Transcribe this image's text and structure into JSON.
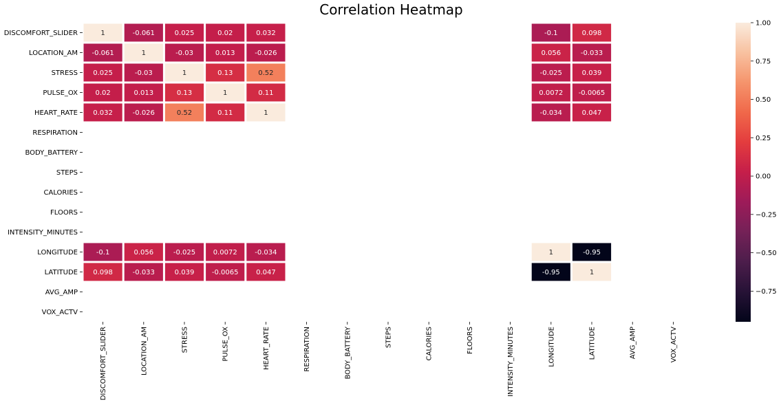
{
  "chart_data": {
    "type": "heatmap",
    "title": "Correlation Heatmap",
    "xlabel": "",
    "ylabel": "",
    "rows": [
      "DISCOMFORT_SLIDER",
      "LOCATION_AM",
      "STRESS",
      "PULSE_OX",
      "HEART_RATE",
      "RESPIRATION",
      "BODY_BATTERY",
      "STEPS",
      "CALORIES",
      "FLOORS",
      "INTENSITY_MINUTES",
      "LONGITUDE",
      "LATITUDE",
      "AVG_AMP",
      "VOX_ACTV"
    ],
    "columns": [
      "DISCOMFORT_SLIDER",
      "LOCATION_AM",
      "STRESS",
      "PULSE_OX",
      "HEART_RATE",
      "RESPIRATION",
      "BODY_BATTERY",
      "STEPS",
      "CALORIES",
      "FLOORS",
      "INTENSITY_MINUTES",
      "LONGITUDE",
      "LATITUDE",
      "AVG_AMP",
      "VOX_ACTV"
    ],
    "values": [
      [
        1,
        -0.061,
        0.025,
        0.02,
        0.032,
        null,
        null,
        null,
        null,
        null,
        null,
        -0.1,
        0.098,
        null,
        null
      ],
      [
        -0.061,
        1,
        -0.03,
        0.013,
        -0.026,
        null,
        null,
        null,
        null,
        null,
        null,
        0.056,
        -0.033,
        null,
        null
      ],
      [
        0.025,
        -0.03,
        1,
        0.13,
        0.52,
        null,
        null,
        null,
        null,
        null,
        null,
        -0.025,
        0.039,
        null,
        null
      ],
      [
        0.02,
        0.013,
        0.13,
        1,
        0.11,
        null,
        null,
        null,
        null,
        null,
        null,
        0.0072,
        -0.0065,
        null,
        null
      ],
      [
        0.032,
        -0.026,
        0.52,
        0.11,
        1,
        null,
        null,
        null,
        null,
        null,
        null,
        -0.034,
        0.047,
        null,
        null
      ],
      [
        null,
        null,
        null,
        null,
        null,
        null,
        null,
        null,
        null,
        null,
        null,
        null,
        null,
        null,
        null
      ],
      [
        null,
        null,
        null,
        null,
        null,
        null,
        null,
        null,
        null,
        null,
        null,
        null,
        null,
        null,
        null
      ],
      [
        null,
        null,
        null,
        null,
        null,
        null,
        null,
        null,
        null,
        null,
        null,
        null,
        null,
        null,
        null
      ],
      [
        null,
        null,
        null,
        null,
        null,
        null,
        null,
        null,
        null,
        null,
        null,
        null,
        null,
        null,
        null
      ],
      [
        null,
        null,
        null,
        null,
        null,
        null,
        null,
        null,
        null,
        null,
        null,
        null,
        null,
        null,
        null
      ],
      [
        null,
        null,
        null,
        null,
        null,
        null,
        null,
        null,
        null,
        null,
        null,
        null,
        null,
        null,
        null
      ],
      [
        -0.1,
        0.056,
        -0.025,
        0.0072,
        -0.034,
        null,
        null,
        null,
        null,
        null,
        null,
        1,
        -0.95,
        null,
        null
      ],
      [
        0.098,
        -0.033,
        0.039,
        -0.0065,
        0.047,
        null,
        null,
        null,
        null,
        null,
        null,
        -0.95,
        1,
        null,
        null
      ],
      [
        null,
        null,
        null,
        null,
        null,
        null,
        null,
        null,
        null,
        null,
        null,
        null,
        null,
        null,
        null
      ],
      [
        null,
        null,
        null,
        null,
        null,
        null,
        null,
        null,
        null,
        null,
        null,
        null,
        null,
        null,
        null
      ]
    ],
    "cell_labels": [
      [
        "1",
        "-0.061",
        "0.025",
        "0.02",
        "0.032",
        "",
        "",
        "",
        "",
        "",
        "",
        "-0.1",
        "0.098",
        "",
        ""
      ],
      [
        "-0.061",
        "1",
        "-0.03",
        "0.013",
        "-0.026",
        "",
        "",
        "",
        "",
        "",
        "",
        "0.056",
        "-0.033",
        "",
        ""
      ],
      [
        "0.025",
        "-0.03",
        "1",
        "0.13",
        "0.52",
        "",
        "",
        "",
        "",
        "",
        "",
        "-0.025",
        "0.039",
        "",
        ""
      ],
      [
        "0.02",
        "0.013",
        "0.13",
        "1",
        "0.11",
        "",
        "",
        "",
        "",
        "",
        "",
        "0.0072",
        "-0.0065",
        "",
        ""
      ],
      [
        "0.032",
        "-0.026",
        "0.52",
        "0.11",
        "1",
        "",
        "",
        "",
        "",
        "",
        "",
        "-0.034",
        "0.047",
        "",
        ""
      ],
      [
        "",
        "",
        "",
        "",
        "",
        "",
        "",
        "",
        "",
        "",
        "",
        "",
        "",
        "",
        ""
      ],
      [
        "",
        "",
        "",
        "",
        "",
        "",
        "",
        "",
        "",
        "",
        "",
        "",
        "",
        "",
        ""
      ],
      [
        "",
        "",
        "",
        "",
        "",
        "",
        "",
        "",
        "",
        "",
        "",
        "",
        "",
        "",
        ""
      ],
      [
        "",
        "",
        "",
        "",
        "",
        "",
        "",
        "",
        "",
        "",
        "",
        "",
        "",
        "",
        ""
      ],
      [
        "",
        "",
        "",
        "",
        "",
        "",
        "",
        "",
        "",
        "",
        "",
        "",
        "",
        "",
        ""
      ],
      [
        "",
        "",
        "",
        "",
        "",
        "",
        "",
        "",
        "",
        "",
        "",
        "",
        "",
        "",
        ""
      ],
      [
        "-0.1",
        "0.056",
        "-0.025",
        "0.0072",
        "-0.034",
        "",
        "",
        "",
        "",
        "",
        "",
        "1",
        "-0.95",
        "",
        ""
      ],
      [
        "0.098",
        "-0.033",
        "0.039",
        "-0.0065",
        "0.047",
        "",
        "",
        "",
        "",
        "",
        "",
        "-0.95",
        "1",
        "",
        ""
      ],
      [
        "",
        "",
        "",
        "",
        "",
        "",
        "",
        "",
        "",
        "",
        "",
        "",
        "",
        "",
        ""
      ],
      [
        "",
        "",
        "",
        "",
        "",
        "",
        "",
        "",
        "",
        "",
        "",
        "",
        "",
        "",
        ""
      ]
    ],
    "colorbar": {
      "colormap": "rocket",
      "range": [
        -0.95,
        1.0
      ],
      "ticks": [
        1.0,
        0.75,
        0.5,
        0.25,
        0.0,
        -0.25,
        -0.5,
        -0.75
      ],
      "tick_labels": [
        "1.00",
        "0.75",
        "0.50",
        "0.25",
        "0.00",
        "−0.25",
        "−0.50",
        "−0.75"
      ]
    },
    "grid": false,
    "cell_separator_color": "#ffffff",
    "legend": "right"
  }
}
